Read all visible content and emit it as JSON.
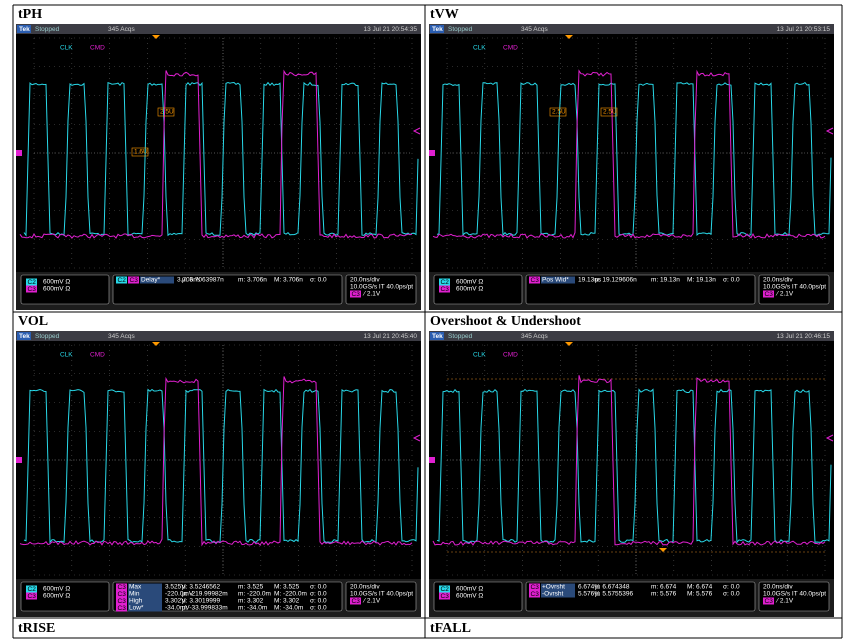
{
  "panels": [
    {
      "label": "tPH",
      "scope": {
        "brand": "Tek",
        "status": "Stopped",
        "acqs": "345 Acqs",
        "timestamp": "13 Jul 21 20:54:35",
        "ch_labels": [
          "CLK",
          "CMD"
        ],
        "cursor_labels": [
          "2.5U",
          "1.6U"
        ],
        "channels": [
          {
            "ch": "C2",
            "scale": "600mV Ω"
          },
          {
            "ch": "C3",
            "scale": "600mV Ω"
          }
        ],
        "measurements": [
          {
            "sources": [
              "C2",
              "C3"
            ],
            "name": "Delay*",
            "value": "3.706ns",
            "mean": "μ: 3.7063987n",
            "min": "m: 3.706n",
            "max": "M: 3.706n",
            "std": "σ: 0.0"
          }
        ],
        "timebase": {
          "scale": "20.0ns/div",
          "rate": "10.0GS/s IT 40.0ps/pt",
          "trigger_source": "C3",
          "trigger": "⁄ 2.1V"
        }
      }
    },
    {
      "label": "tVW",
      "scope": {
        "brand": "Tek",
        "status": "Stopped",
        "acqs": "345 Acqs",
        "timestamp": "13 Jul 21 20:53:15",
        "ch_labels": [
          "CLK",
          "CMD"
        ],
        "cursor_labels": [
          "2.5U",
          "2.5U"
        ],
        "channels": [
          {
            "ch": "C2",
            "scale": "600mV Ω"
          },
          {
            "ch": "C3",
            "scale": "600mV Ω"
          }
        ],
        "measurements": [
          {
            "sources": [
              "C3"
            ],
            "name": "Pos Wid*",
            "value": "19.13ns",
            "mean": "μ: 19.129606n",
            "min": "m: 19.13n",
            "max": "M: 19.13n",
            "std": "σ: 0.0"
          }
        ],
        "timebase": {
          "scale": "20.0ns/div",
          "rate": "10.0GS/s IT 40.0ps/pt",
          "trigger_source": "C3",
          "trigger": "⁄ 2.1V"
        }
      }
    },
    {
      "label": "VOL",
      "scope": {
        "brand": "Tek",
        "status": "Stopped",
        "acqs": "345 Acqs",
        "timestamp": "13 Jul 21 20:45:40",
        "ch_labels": [
          "CLK",
          "CMD"
        ],
        "cursor_labels": [],
        "channels": [
          {
            "ch": "C2",
            "scale": "600mV Ω"
          },
          {
            "ch": "C3",
            "scale": "600mV Ω"
          }
        ],
        "measurements": [
          {
            "sources": [
              "C3"
            ],
            "name": "Max",
            "value": "3.525V",
            "mean": "μ: 3.5246562",
            "min": "m: 3.525",
            "max": "M: 3.525",
            "std": "σ: 0.0"
          },
          {
            "sources": [
              "C3"
            ],
            "name": "Min",
            "value": "-220.0mV",
            "mean": "μ: -219.99982m",
            "min": "m: -220.0m",
            "max": "M: -220.0m",
            "std": "σ: 0.0"
          },
          {
            "sources": [
              "C3"
            ],
            "name": "High",
            "value": "3.302V",
            "mean": "μ: 3.3019999",
            "min": "m: 3.302",
            "max": "M: 3.302",
            "std": "σ: 0.0"
          },
          {
            "sources": [
              "C3"
            ],
            "name": "Low*",
            "value": "-34.0mV",
            "mean": "μ: -33.999833m",
            "min": "m: -34.0m",
            "max": "M: -34.0m",
            "std": "σ: 0.0"
          }
        ],
        "timebase": {
          "scale": "20.0ns/div",
          "rate": "10.0GS/s IT 40.0ps/pt",
          "trigger_source": "C3",
          "trigger": "⁄ 2.1V"
        }
      }
    },
    {
      "label": "Overshoot & Undershoot",
      "scope": {
        "brand": "Tek",
        "status": "Stopped",
        "acqs": "345 Acqs",
        "timestamp": "13 Jul 21 20:46:15",
        "ch_labels": [
          "CLK",
          "CMD"
        ],
        "cursor_labels": [],
        "channels": [
          {
            "ch": "C2",
            "scale": "600mV Ω"
          },
          {
            "ch": "C3",
            "scale": "600mV Ω"
          }
        ],
        "measurements": [
          {
            "sources": [
              "C3"
            ],
            "name": "+Ovrsht",
            "value": "6.674%",
            "mean": "μ: 6.674348",
            "min": "m: 6.674",
            "max": "M: 6.674",
            "std": "σ: 0.0"
          },
          {
            "sources": [
              "C3"
            ],
            "name": "-Ovrsht",
            "value": "5.576%",
            "mean": "μ: 5.5755396",
            "min": "m: 5.576",
            "max": "M: 5.576",
            "std": "σ: 0.0"
          }
        ],
        "timebase": {
          "scale": "20.0ns/div",
          "rate": "10.0GS/s IT 40.0ps/pt",
          "trigger_source": "C3",
          "trigger": "⁄ 2.1V"
        }
      }
    }
  ],
  "footer_labels": [
    "tRISE",
    "tFALL"
  ]
}
